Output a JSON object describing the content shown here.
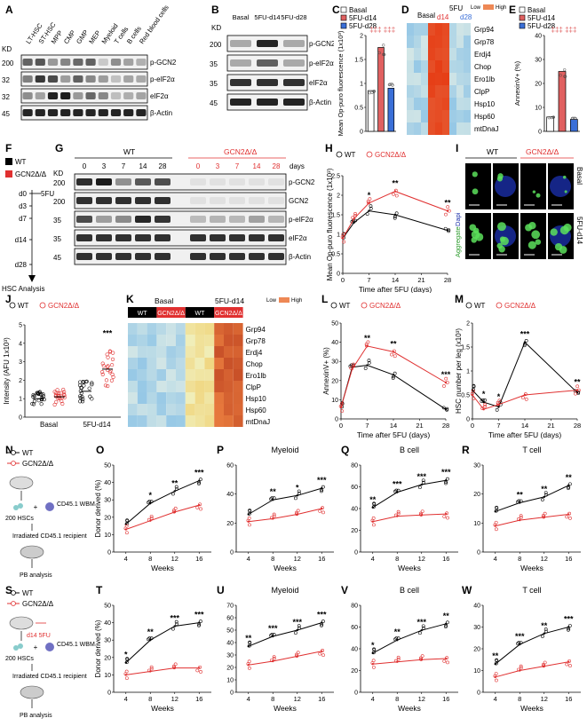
{
  "panel_letters": [
    "A",
    "B",
    "C",
    "D",
    "E",
    "F",
    "G",
    "H",
    "I",
    "J",
    "K",
    "L",
    "M",
    "N",
    "O",
    "P",
    "Q",
    "R",
    "S",
    "T",
    "U",
    "V",
    "W"
  ],
  "blot_a": {
    "kd_label": "KD",
    "columns": [
      "LT-HSC",
      "ST-HSC",
      "MPP",
      "CMP",
      "GMP",
      "MEP",
      "Myeloid",
      "T cells",
      "B cells",
      "Red blood cells"
    ],
    "rows": [
      {
        "kd": "200",
        "label": "p-GCN2"
      },
      {
        "kd": "32",
        "label": "p-eIF2α"
      },
      {
        "kd": "32",
        "label": "eIF2α"
      },
      {
        "kd": "45",
        "label": "β-Actin"
      }
    ]
  },
  "blot_b": {
    "kd_label": "KD",
    "columns": [
      "Basal",
      "5FU-d14",
      "5FU-d28"
    ],
    "rows": [
      {
        "kd": "200",
        "label": "p-GCN2"
      },
      {
        "kd": "35",
        "label": "p-eIF2α"
      },
      {
        "kd": "35",
        "label": "eIF2α"
      },
      {
        "kd": "45",
        "label": "β-Actin"
      }
    ]
  },
  "legend_5fu": {
    "basal": "Basal",
    "d14": "5FU-d14",
    "d28": "5FU-d28"
  },
  "legend_geno": {
    "wt": "WT",
    "ko": "GCN2Δ/Δ"
  },
  "colors": {
    "wt": "#000000",
    "ko": "#e03030",
    "d14": "#e06060",
    "d28": "#3a6fd8"
  },
  "heatmap_d": {
    "col_labels": {
      "basal": "Basal",
      "fu": "5FU",
      "d14": "d14",
      "d28": "d28"
    },
    "scale": {
      "low": "Low",
      "high": "High"
    },
    "genes": [
      "Grp94",
      "Grp78",
      "Erdj4",
      "Chop",
      "Ero1lb",
      "ClpP",
      "Hsp10",
      "Hsp60",
      "mtDnaJ"
    ]
  },
  "heatmap_k": {
    "top_labels": {
      "basal": "Basal",
      "d14": "5FU-d14"
    },
    "group_labels": [
      "WT",
      "GCN2Δ/Δ",
      "WT",
      "GCN2Δ/Δ"
    ],
    "scale": {
      "low": "Low",
      "high": "High"
    },
    "genes": [
      "Grp94",
      "Grp78",
      "Erdj4",
      "Chop",
      "Ero1lb",
      "ClpP",
      "Hsp10",
      "Hsp60",
      "mtDnaJ"
    ]
  },
  "schematic_f": {
    "timepoints": [
      "d0",
      "d3",
      "d7",
      "d14",
      "d28"
    ],
    "treatment": "5FU",
    "endpoint": "HSC Analysis"
  },
  "blot_g": {
    "kd_label": "KD",
    "group_labels": [
      "WT",
      "GCN2Δ/Δ"
    ],
    "days": [
      "0",
      "3",
      "7",
      "14",
      "28"
    ],
    "days_unit": "days",
    "rows": [
      {
        "kd": "200",
        "label": "p-GCN2"
      },
      {
        "kd": "200",
        "label": "GCN2"
      },
      {
        "kd": "35",
        "label": "p-eIF2α"
      },
      {
        "kd": "35",
        "label": "eIF2α"
      },
      {
        "kd": "45",
        "label": "β-Actin"
      }
    ]
  },
  "micro_i": {
    "group_labels": [
      "WT",
      "GCN2Δ/Δ"
    ],
    "row_labels": [
      "Basal",
      "5FU-d14"
    ],
    "stain_aggregate": "Aggregate",
    "stain_dapi": "Dapi"
  },
  "schematic_n": {
    "cells": "200 HSCs",
    "plus": "+",
    "wbm": "CD45.1 WBM",
    "recipient": "Irradiated CD45.1 recipient",
    "analysis": "PB analysis"
  },
  "schematic_s": {
    "treatment": "d14 5FU",
    "cells": "200 HSCs",
    "plus": "+",
    "wbm": "CD45.1 WBM",
    "recipient": "Irradiated CD45.1 recipient",
    "analysis": "PB analysis"
  },
  "chart_data": [
    {
      "id": "C",
      "type": "bar",
      "categories": [
        "Basal",
        "5FU-d14",
        "5FU-d28"
      ],
      "values": [
        0.85,
        1.75,
        0.9
      ],
      "ylabel": "Mean Op-puro fluorescence (1x10³)",
      "ylim": [
        0,
        2
      ],
      "yticks": [
        0,
        0.5,
        1.0,
        1.5,
        2.0
      ],
      "significance": [
        "‡‡‡",
        "‡‡‡"
      ]
    },
    {
      "id": "E",
      "type": "bar",
      "categories": [
        "Basal",
        "5FU-d14",
        "5FU-d28"
      ],
      "values": [
        6,
        25,
        5
      ],
      "ylabel": "AnnexinV+ (%)",
      "ylim": [
        0,
        40
      ],
      "yticks": [
        0,
        10,
        20,
        30,
        40
      ],
      "significance": [
        "‡‡‡",
        "‡‡‡"
      ]
    },
    {
      "id": "H",
      "type": "line",
      "x": [
        0,
        3,
        7,
        14,
        28
      ],
      "xticks": [
        0,
        7,
        14,
        21,
        28
      ],
      "xlim": [
        0,
        28
      ],
      "series": [
        {
          "name": "WT",
          "values": [
            0.9,
            1.3,
            1.6,
            1.5,
            1.1
          ]
        },
        {
          "name": "GCN2Δ/Δ",
          "values": [
            0.9,
            1.4,
            1.8,
            2.1,
            1.6
          ]
        }
      ],
      "significance": [
        {
          "x": 7,
          "text": "*"
        },
        {
          "x": 14,
          "text": "**"
        },
        {
          "x": 28,
          "text": "**"
        }
      ],
      "xlabel": "Time after 5FU (days)",
      "ylabel": "Mean Op-puro fluorescence (1x10³)",
      "ylim": [
        0,
        2.5
      ],
      "yticks": [
        0,
        0.5,
        1.0,
        1.5,
        2.0,
        2.5
      ]
    },
    {
      "id": "J",
      "type": "scatter",
      "categories": [
        "Basal",
        "5FU-d14"
      ],
      "series": [
        {
          "name": "WT",
          "means": [
            1.0,
            1.4
          ]
        },
        {
          "name": "GCN2Δ/Δ",
          "means": [
            1.1,
            2.6
          ]
        }
      ],
      "significance": [
        {
          "x": "5FU-d14",
          "text": "***"
        }
      ],
      "ylabel": "Intensity (AFU 1x10³)",
      "ylim": [
        0,
        5
      ],
      "yticks": [
        0,
        1,
        2,
        3,
        4,
        5
      ]
    },
    {
      "id": "L",
      "type": "line",
      "x": [
        0,
        3,
        7,
        14,
        28
      ],
      "xticks": [
        0,
        7,
        14,
        21,
        28
      ],
      "xlim": [
        0,
        28
      ],
      "series": [
        {
          "name": "WT",
          "values": [
            6,
            27,
            28,
            23,
            5
          ]
        },
        {
          "name": "GCN2Δ/Δ",
          "values": [
            6,
            26,
            38,
            35,
            19
          ]
        }
      ],
      "significance": [
        {
          "x": 7,
          "text": "**"
        },
        {
          "x": 14,
          "text": "**"
        },
        {
          "x": 28,
          "text": "***"
        }
      ],
      "xlabel": "Time after 5FU (days)",
      "ylabel": "AnnexinV+ (%)",
      "ylim": [
        0,
        50
      ],
      "yticks": [
        0,
        10,
        20,
        30,
        40,
        50
      ]
    },
    {
      "id": "M",
      "type": "line",
      "x": [
        0,
        3,
        7,
        14,
        28
      ],
      "xticks": [
        0,
        7,
        14,
        21,
        28
      ],
      "xlim": [
        0,
        28
      ],
      "series": [
        {
          "name": "WT",
          "values": [
            0.6,
            0.35,
            0.25,
            1.6,
            0.55
          ]
        },
        {
          "name": "GCN2Δ/Δ",
          "values": [
            0.5,
            0.2,
            0.3,
            0.5,
            0.6
          ]
        }
      ],
      "significance": [
        {
          "x": 3,
          "text": "*"
        },
        {
          "x": 7,
          "text": "*"
        },
        {
          "x": 14,
          "text": "***"
        },
        {
          "x": 28,
          "text": "**"
        }
      ],
      "xlabel": "Time after 5FU (days)",
      "ylabel": "HSC number per leg (x10³)",
      "ylim": [
        0,
        2
      ],
      "yticks": [
        0,
        0.5,
        1.0,
        1.5,
        2.0
      ]
    },
    {
      "id": "O",
      "type": "line",
      "title": "",
      "x": [
        4,
        8,
        12,
        16
      ],
      "series": [
        {
          "name": "WT",
          "values": [
            16,
            28,
            35,
            41
          ]
        },
        {
          "name": "GCN2Δ/Δ",
          "values": [
            13,
            18,
            23,
            27
          ]
        }
      ],
      "significance": [
        "",
        "*",
        "**",
        "***"
      ],
      "xlabel": "Weeks",
      "ylabel": "Donor derived (%)",
      "ylim": [
        0,
        50
      ],
      "yticks": [
        0,
        10,
        20,
        30,
        40,
        50
      ]
    },
    {
      "id": "P",
      "type": "line",
      "title": "Myeloid",
      "x": [
        4,
        8,
        12,
        16
      ],
      "series": [
        {
          "name": "WT",
          "values": [
            26,
            36,
            39,
            44
          ]
        },
        {
          "name": "GCN2Δ/Δ",
          "values": [
            21,
            23,
            26,
            30
          ]
        }
      ],
      "significance": [
        "",
        "**",
        "*",
        "***"
      ],
      "xlabel": "Weeks",
      "ylabel": "",
      "ylim": [
        0,
        60
      ],
      "yticks": [
        0,
        20,
        40,
        60
      ]
    },
    {
      "id": "Q",
      "type": "line",
      "title": "B cell",
      "x": [
        4,
        8,
        12,
        16
      ],
      "series": [
        {
          "name": "WT",
          "values": [
            41,
            55,
            62,
            66
          ]
        },
        {
          "name": "GCN2Δ/Δ",
          "values": [
            28,
            33,
            34,
            35
          ]
        }
      ],
      "significance": [
        "**",
        "***",
        "***",
        "***"
      ],
      "xlabel": "Weeks",
      "ylabel": "",
      "ylim": [
        0,
        80
      ],
      "yticks": [
        0,
        20,
        40,
        60,
        80
      ]
    },
    {
      "id": "R",
      "type": "line",
      "title": "T cell",
      "x": [
        4,
        8,
        12,
        16
      ],
      "series": [
        {
          "name": "WT",
          "values": [
            14,
            17,
            19,
            23
          ]
        },
        {
          "name": "GCN2Δ/Δ",
          "values": [
            9,
            11,
            12,
            13
          ]
        }
      ],
      "significance": [
        "",
        "**",
        "**",
        "**"
      ],
      "xlabel": "Weeks",
      "ylabel": "",
      "ylim": [
        0,
        30
      ],
      "yticks": [
        0,
        10,
        20,
        30
      ]
    },
    {
      "id": "T",
      "type": "line",
      "title": "",
      "x": [
        4,
        8,
        12,
        16
      ],
      "series": [
        {
          "name": "WT",
          "values": [
            17,
            30,
            38,
            40
          ]
        },
        {
          "name": "GCN2Δ/Δ",
          "values": [
            10,
            12,
            14,
            14
          ]
        }
      ],
      "significance": [
        "*",
        "**",
        "***",
        "***"
      ],
      "xlabel": "Weeks",
      "ylabel": "Donor derived (%)",
      "ylim": [
        0,
        50
      ],
      "yticks": [
        0,
        10,
        20,
        30,
        40,
        50
      ]
    },
    {
      "id": "U",
      "type": "line",
      "title": "Myeloid",
      "x": [
        4,
        8,
        12,
        16
      ],
      "series": [
        {
          "name": "WT",
          "values": [
            37,
            45,
            50,
            56
          ]
        },
        {
          "name": "GCN2Δ/Δ",
          "values": [
            22,
            25,
            29,
            33
          ]
        }
      ],
      "significance": [
        "**",
        "***",
        "***",
        "***"
      ],
      "xlabel": "Weeks",
      "ylabel": "",
      "ylim": [
        0,
        70
      ],
      "yticks": [
        0,
        10,
        20,
        30,
        40,
        50,
        60,
        70
      ]
    },
    {
      "id": "V",
      "type": "line",
      "title": "B cell",
      "x": [
        4,
        8,
        12,
        16
      ],
      "series": [
        {
          "name": "WT",
          "values": [
            36,
            48,
            57,
            63
          ]
        },
        {
          "name": "GCN2Δ/Δ",
          "values": [
            26,
            28,
            30,
            31
          ]
        }
      ],
      "significance": [
        "*",
        "**",
        "***",
        "**"
      ],
      "xlabel": "Weeks",
      "ylabel": "",
      "ylim": [
        0,
        80
      ],
      "yticks": [
        0,
        20,
        40,
        60,
        80
      ]
    },
    {
      "id": "W",
      "type": "line",
      "title": "T cell",
      "x": [
        4,
        8,
        12,
        16
      ],
      "series": [
        {
          "name": "WT",
          "values": [
            13,
            22,
            27,
            30
          ]
        },
        {
          "name": "GCN2Δ/Δ",
          "values": [
            7,
            10,
            12,
            14
          ]
        }
      ],
      "significance": [
        "**",
        "***",
        "**",
        "***"
      ],
      "xlabel": "Weeks",
      "ylabel": "",
      "ylim": [
        0,
        40
      ],
      "yticks": [
        0,
        10,
        20,
        30,
        40
      ]
    }
  ]
}
